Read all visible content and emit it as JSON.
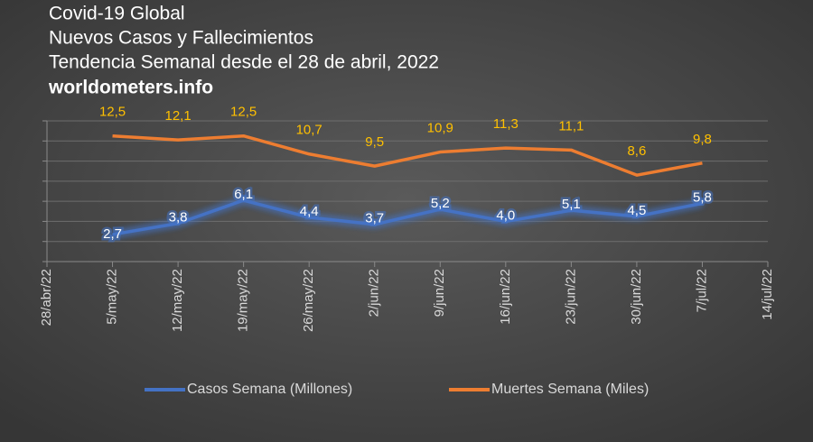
{
  "chart_data": {
    "type": "line",
    "title_lines": [
      "Covid-19 Global",
      "Nuevos Casos y Fallecimientos",
      "Tendencia Semanal desde el 28 de abril, 2022"
    ],
    "source": "worldometers.info",
    "categories": [
      "28/abr/22",
      "5/may/22",
      "12/may/22",
      "19/may/22",
      "26/may/22",
      "2/jun/22",
      "9/jun/22",
      "16/jun/22",
      "23/jun/22",
      "30/jun/22",
      "7/jul/22",
      "14/jul/22"
    ],
    "series": [
      {
        "name": "Casos Semana (Millones)",
        "color": "#4472c4",
        "label_color": "#ffffff",
        "values": [
          null,
          2.7,
          3.8,
          6.1,
          4.4,
          3.7,
          5.2,
          4.0,
          5.1,
          4.5,
          5.8,
          null
        ],
        "value_labels": [
          null,
          "2,7",
          "3,8",
          "6,1",
          "4,4",
          "3,7",
          "5,2",
          "4,0",
          "5,1",
          "4,5",
          "5,8",
          null
        ]
      },
      {
        "name": "Muertes Semana (Miles)",
        "color": "#ed7d31",
        "label_color": "#ffc000",
        "values": [
          null,
          12.5,
          12.1,
          12.5,
          10.7,
          9.5,
          10.9,
          11.3,
          11.1,
          8.6,
          9.8,
          null
        ],
        "value_labels": [
          null,
          "12,5",
          "12,1",
          "12,5",
          "10,7",
          "9,5",
          "10,9",
          "11,3",
          "11,1",
          "8,6",
          "9,8",
          null
        ]
      }
    ],
    "ylim": [
      0,
      14
    ],
    "yticks": [
      0,
      2,
      4,
      6,
      8,
      10,
      12,
      14
    ],
    "grid": true,
    "legend": "bottom"
  }
}
